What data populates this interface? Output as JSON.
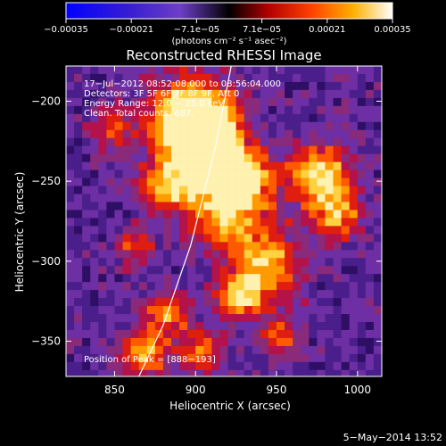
{
  "chart_data": {
    "type": "heatmap",
    "title": "Reconstructed RHESSI Image",
    "xlabel": "Heliocentric X (arcsec)",
    "ylabel": "Heliocentric Y (arcsec)",
    "xlim": [
      820,
      1015
    ],
    "ylim": [
      -372,
      -178
    ],
    "x_ticks": [
      850,
      900,
      950,
      1000
    ],
    "y_ticks": [
      -350,
      -300,
      -250,
      -200
    ],
    "tick_labels_x": [
      "850",
      "900",
      "950",
      "1000"
    ],
    "tick_labels_y": [
      "−350",
      "−300",
      "−250",
      "−200"
    ],
    "colorbar": {
      "range": [
        -0.00035,
        0.00035
      ],
      "tick_labels": [
        "−0.00035",
        "−0.00021",
        "−7.1e−05",
        "7.1e−05",
        "0.00021",
        "0.00035"
      ],
      "units_text": "(photons cm⁻² s⁻¹ asec⁻²)",
      "colors": [
        "#0000ff",
        "#3a1fd0",
        "#6e3ec6",
        "#000000",
        "#b30000",
        "#ff4000",
        "#ffb000",
        "#ffffff"
      ]
    },
    "info_lines": [
      "17−Jul−2012 08:52:08.000 to 08:56:04.000",
      "Detectors: 3F 5F 6F 7F 8F 9F, Att 0",
      "Energy Range: 12.0 − 25.0 keV",
      "Clean. Total counts: 687."
    ],
    "peak_label": "Position of Peak = [888−193]",
    "hot_spots": [
      {
        "x": 895,
        "y": -210,
        "s": 18,
        "a": 1.0
      },
      {
        "x": 905,
        "y": -225,
        "s": 14,
        "a": 0.9
      },
      {
        "x": 880,
        "y": -250,
        "s": 12,
        "a": 0.6
      },
      {
        "x": 915,
        "y": -265,
        "s": 16,
        "a": 0.7
      },
      {
        "x": 930,
        "y": -245,
        "s": 12,
        "a": 0.6
      },
      {
        "x": 940,
        "y": -300,
        "s": 16,
        "a": 0.6
      },
      {
        "x": 925,
        "y": -320,
        "s": 10,
        "a": 0.55
      },
      {
        "x": 975,
        "y": -245,
        "s": 14,
        "a": 0.75
      },
      {
        "x": 985,
        "y": -270,
        "s": 10,
        "a": 0.5
      },
      {
        "x": 880,
        "y": -330,
        "s": 10,
        "a": 0.55
      },
      {
        "x": 865,
        "y": -355,
        "s": 10,
        "a": 0.6
      },
      {
        "x": 900,
        "y": -355,
        "s": 10,
        "a": 0.5
      },
      {
        "x": 950,
        "y": -345,
        "s": 8,
        "a": 0.45
      },
      {
        "x": 860,
        "y": -290,
        "s": 8,
        "a": 0.4
      },
      {
        "x": 845,
        "y": -215,
        "s": 10,
        "a": 0.35
      }
    ],
    "limb_curve": [
      [
        922,
        -178
      ],
      [
        912,
        -230
      ],
      [
        897,
        -290
      ],
      [
        880,
        -340
      ],
      [
        865,
        -372
      ]
    ],
    "footer_date": "5−May−2014 13:52"
  }
}
